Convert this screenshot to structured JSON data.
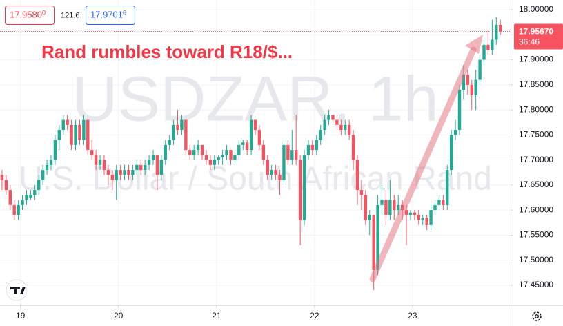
{
  "chart_data": {
    "type": "candlestick",
    "quote": {
      "bid_main": "17.9580",
      "bid_pip": "0",
      "spread": "121.6",
      "ask_main": "17.9701",
      "ask_pip": "6"
    },
    "annotation": "Rand rumbles toward R18/$...",
    "watermark": {
      "symbol": "USDZAR, 1h",
      "description": "U.S. Dollar / South African Rand"
    },
    "last_price": {
      "value": 17.9567,
      "label": "17.95670"
    },
    "countdown": "36:46",
    "up_color": "#22ab94",
    "down_color": "#f7525f",
    "grid": true,
    "xlim": [
      -0.5,
      124.5
    ],
    "xticks": [
      {
        "value": 4.5,
        "label": "19"
      },
      {
        "value": 28.5,
        "label": "20"
      },
      {
        "value": 52.5,
        "label": "21"
      },
      {
        "value": 76.5,
        "label": "22"
      },
      {
        "value": 100.5,
        "label": "23"
      }
    ],
    "ylim": [
      17.4098,
      18.0194
    ],
    "yticks": [
      {
        "value": 17.45,
        "label": "17.45000"
      },
      {
        "value": 17.5,
        "label": "17.50000"
      },
      {
        "value": 17.55,
        "label": "17.55000"
      },
      {
        "value": 17.6,
        "label": "17.60000"
      },
      {
        "value": 17.65,
        "label": "17.65000"
      },
      {
        "value": 17.7,
        "label": "17.70000"
      },
      {
        "value": 17.75,
        "label": "17.75000"
      },
      {
        "value": 17.8,
        "label": "17.80000"
      },
      {
        "value": 17.85,
        "label": "17.85000"
      },
      {
        "value": 17.9,
        "label": "17.90000"
      },
      {
        "value": 17.95,
        "label": "17.95000"
      },
      {
        "value": 18.0,
        "label": "18.00000"
      }
    ],
    "ohlc": [
      [
        17.67,
        17.68,
        17.64,
        17.66
      ],
      [
        17.66,
        17.67,
        17.63,
        17.64
      ],
      [
        17.64,
        17.65,
        17.6,
        17.61
      ],
      [
        17.61,
        17.62,
        17.58,
        17.59
      ],
      [
        17.59,
        17.62,
        17.58,
        17.61
      ],
      [
        17.61,
        17.63,
        17.6,
        17.62
      ],
      [
        17.62,
        17.64,
        17.61,
        17.63
      ],
      [
        17.625,
        17.64,
        17.62,
        17.63
      ],
      [
        17.63,
        17.65,
        17.62,
        17.64
      ],
      [
        17.64,
        17.67,
        17.63,
        17.66
      ],
      [
        17.66,
        17.69,
        17.65,
        17.68
      ],
      [
        17.68,
        17.7,
        17.67,
        17.69
      ],
      [
        17.69,
        17.71,
        17.68,
        17.7
      ],
      [
        17.7,
        17.75,
        17.69,
        17.74
      ],
      [
        17.74,
        17.77,
        17.72,
        17.76
      ],
      [
        17.76,
        17.79,
        17.75,
        17.78
      ],
      [
        17.78,
        17.79,
        17.76,
        17.77
      ],
      [
        17.77,
        17.78,
        17.72,
        17.73
      ],
      [
        17.73,
        17.78,
        17.72,
        17.77
      ],
      [
        17.77,
        17.78,
        17.73,
        17.74
      ],
      [
        17.74,
        17.79,
        17.73,
        17.78
      ],
      [
        17.78,
        17.78,
        17.71,
        17.72
      ],
      [
        17.72,
        17.74,
        17.7,
        17.71
      ],
      [
        17.71,
        17.72,
        17.68,
        17.69
      ],
      [
        17.69,
        17.71,
        17.68,
        17.7
      ],
      [
        17.7,
        17.71,
        17.67,
        17.68
      ],
      [
        17.68,
        17.69,
        17.65,
        17.67
      ],
      [
        17.67,
        17.68,
        17.64,
        17.66
      ],
      [
        17.66,
        17.69,
        17.62,
        17.68
      ],
      [
        17.68,
        17.69,
        17.66,
        17.67
      ],
      [
        17.67,
        17.69,
        17.66,
        17.68
      ],
      [
        17.68,
        17.69,
        17.66,
        17.67
      ],
      [
        17.67,
        17.69,
        17.66,
        17.68
      ],
      [
        17.68,
        17.7,
        17.67,
        17.69
      ],
      [
        17.69,
        17.7,
        17.67,
        17.68
      ],
      [
        17.68,
        17.7,
        17.67,
        17.69
      ],
      [
        17.69,
        17.71,
        17.68,
        17.7
      ],
      [
        17.7,
        17.72,
        17.69,
        17.71
      ],
      [
        17.71,
        17.71,
        17.64,
        17.67
      ],
      [
        17.67,
        17.71,
        17.66,
        17.7
      ],
      [
        17.7,
        17.74,
        17.69,
        17.73
      ],
      [
        17.73,
        17.75,
        17.72,
        17.74
      ],
      [
        17.74,
        17.78,
        17.73,
        17.77
      ],
      [
        17.77,
        17.8,
        17.75,
        17.76
      ],
      [
        17.76,
        17.79,
        17.75,
        17.78
      ],
      [
        17.78,
        17.78,
        17.71,
        17.72
      ],
      [
        17.72,
        17.73,
        17.7,
        17.71
      ],
      [
        17.71,
        17.73,
        17.7,
        17.72
      ],
      [
        17.72,
        17.74,
        17.71,
        17.73
      ],
      [
        17.73,
        17.73,
        17.7,
        17.71
      ],
      [
        17.71,
        17.72,
        17.69,
        17.7
      ],
      [
        17.7,
        17.71,
        17.68,
        17.69
      ],
      [
        17.69,
        17.71,
        17.68,
        17.7
      ],
      [
        17.7,
        17.71,
        17.69,
        17.705
      ],
      [
        17.705,
        17.72,
        17.69,
        17.71
      ],
      [
        17.71,
        17.73,
        17.7,
        17.72
      ],
      [
        17.72,
        17.72,
        17.69,
        17.7
      ],
      [
        17.7,
        17.72,
        17.69,
        17.71
      ],
      [
        17.71,
        17.74,
        17.7,
        17.73
      ],
      [
        17.73,
        17.74,
        17.72,
        17.735
      ],
      [
        17.735,
        17.74,
        17.71,
        17.72
      ],
      [
        17.72,
        17.79,
        17.71,
        17.78
      ],
      [
        17.78,
        17.78,
        17.75,
        17.76
      ],
      [
        17.76,
        17.77,
        17.72,
        17.73
      ],
      [
        17.73,
        17.74,
        17.69,
        17.7
      ],
      [
        17.7,
        17.71,
        17.66,
        17.67
      ],
      [
        17.67,
        17.69,
        17.66,
        17.68
      ],
      [
        17.68,
        17.69,
        17.66,
        17.67
      ],
      [
        17.67,
        17.68,
        17.63,
        17.66
      ],
      [
        17.66,
        17.74,
        17.65,
        17.73
      ],
      [
        17.73,
        17.74,
        17.69,
        17.7
      ],
      [
        17.7,
        17.76,
        17.69,
        17.72
      ],
      [
        17.72,
        17.79,
        17.69,
        17.7
      ],
      [
        17.7,
        17.71,
        17.53,
        17.58
      ],
      [
        17.58,
        17.72,
        17.57,
        17.71
      ],
      [
        17.71,
        17.74,
        17.7,
        17.73
      ],
      [
        17.73,
        17.74,
        17.71,
        17.72
      ],
      [
        17.72,
        17.75,
        17.71,
        17.74
      ],
      [
        17.74,
        17.77,
        17.73,
        17.76
      ],
      [
        17.76,
        17.79,
        17.75,
        17.78
      ],
      [
        17.78,
        17.8,
        17.77,
        17.79
      ],
      [
        17.79,
        17.79,
        17.77,
        17.78
      ],
      [
        17.78,
        17.79,
        17.76,
        17.77
      ],
      [
        17.77,
        17.78,
        17.75,
        17.76
      ],
      [
        17.76,
        17.78,
        17.75,
        17.77
      ],
      [
        17.77,
        17.78,
        17.74,
        17.75
      ],
      [
        17.75,
        17.76,
        17.68,
        17.7
      ],
      [
        17.7,
        17.71,
        17.61,
        17.64
      ],
      [
        17.64,
        17.66,
        17.6,
        17.63
      ],
      [
        17.63,
        17.64,
        17.57,
        17.58
      ],
      [
        17.58,
        17.6,
        17.55,
        17.59
      ],
      [
        17.59,
        17.59,
        17.44,
        17.48
      ],
      [
        17.48,
        17.63,
        17.47,
        17.61
      ],
      [
        17.61,
        17.65,
        17.59,
        17.62
      ],
      [
        17.62,
        17.64,
        17.57,
        17.59
      ],
      [
        17.59,
        17.66,
        17.58,
        17.62
      ],
      [
        17.62,
        17.63,
        17.58,
        17.6
      ],
      [
        17.6,
        17.63,
        17.59,
        17.61
      ],
      [
        17.61,
        17.62,
        17.58,
        17.6
      ],
      [
        17.6,
        17.61,
        17.53,
        17.59
      ],
      [
        17.59,
        17.6,
        17.58,
        17.595
      ],
      [
        17.595,
        17.6,
        17.58,
        17.59
      ],
      [
        17.59,
        17.6,
        17.57,
        17.58
      ],
      [
        17.58,
        17.59,
        17.57,
        17.585
      ],
      [
        17.585,
        17.59,
        17.56,
        17.57
      ],
      [
        17.57,
        17.61,
        17.56,
        17.6
      ],
      [
        17.6,
        17.62,
        17.59,
        17.61
      ],
      [
        17.61,
        17.63,
        17.6,
        17.62
      ],
      [
        17.62,
        17.63,
        17.6,
        17.61
      ],
      [
        17.61,
        17.69,
        17.6,
        17.68
      ],
      [
        17.68,
        17.76,
        17.67,
        17.75
      ],
      [
        17.75,
        17.78,
        17.74,
        17.76
      ],
      [
        17.76,
        17.85,
        17.75,
        17.84
      ],
      [
        17.84,
        17.89,
        17.82,
        17.87
      ],
      [
        17.87,
        17.88,
        17.83,
        17.85
      ],
      [
        17.85,
        17.86,
        17.8,
        17.83
      ],
      [
        17.83,
        17.88,
        17.8,
        17.86
      ],
      [
        17.86,
        17.91,
        17.85,
        17.9
      ],
      [
        17.9,
        17.94,
        17.89,
        17.93
      ],
      [
        17.93,
        17.96,
        17.91,
        17.92
      ],
      [
        17.92,
        17.98,
        17.91,
        17.94
      ],
      [
        17.94,
        17.985,
        17.93,
        17.97
      ],
      [
        17.97,
        17.98,
        17.95,
        17.9567
      ]
    ]
  }
}
